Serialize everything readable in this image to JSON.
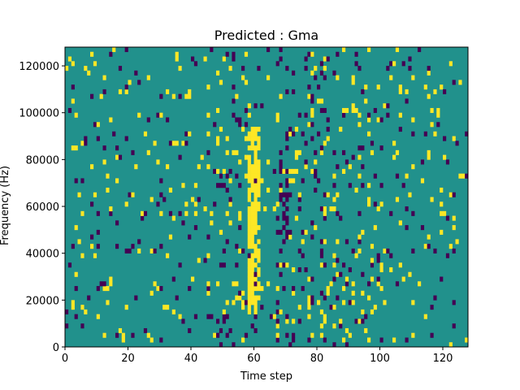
{
  "chart_data": {
    "type": "heatmap",
    "title": "Predicted : Gma",
    "xlabel": "Time step",
    "ylabel": "Frequency (Hz)",
    "xlim": [
      0,
      128
    ],
    "ylim": [
      0,
      128000
    ],
    "x_ticks": [
      0,
      20,
      40,
      60,
      80,
      100,
      120
    ],
    "y_ticks": [
      0,
      20000,
      40000,
      60000,
      80000,
      100000,
      120000
    ],
    "x_tick_labels": [
      "0",
      "20",
      "40",
      "60",
      "80",
      "100",
      "120"
    ],
    "y_tick_labels": [
      "0",
      "20000",
      "40000",
      "60000",
      "80000",
      "100000",
      "120000"
    ],
    "n_time_steps": 128,
    "n_freq_bins": 64,
    "values": [
      -1,
      0,
      1
    ],
    "colors": {
      "-1": "#440154",
      "0": "#21918c",
      "1": "#fde725"
    },
    "background_value": 0,
    "seed": 7
  }
}
